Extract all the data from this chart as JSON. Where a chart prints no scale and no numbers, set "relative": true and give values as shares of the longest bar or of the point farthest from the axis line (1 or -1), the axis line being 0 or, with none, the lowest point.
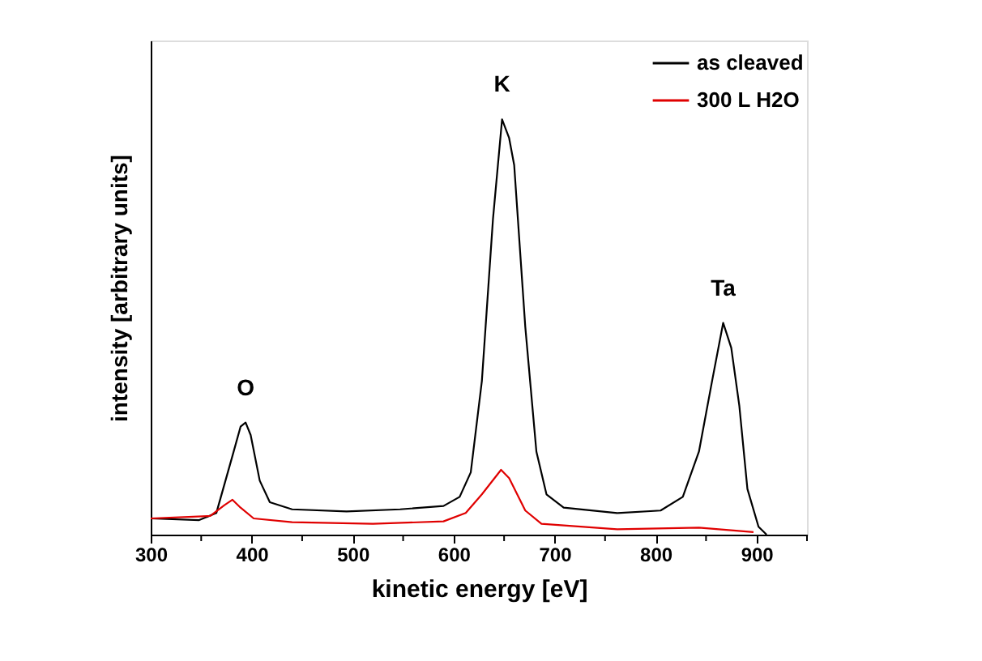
{
  "chart_data": {
    "type": "line",
    "relative": true,
    "xlabel": "kinetic energy [eV]",
    "ylabel": "intensity [arbitrary units]",
    "xlim": [
      300,
      950
    ],
    "xticks": [
      300,
      {
        "value": 350,
        "label": null
      },
      400,
      {
        "value": 450,
        "label": null
      },
      500,
      {
        "value": 550,
        "label": null
      },
      600,
      {
        "value": 650,
        "label": null
      },
      700,
      {
        "value": 750,
        "label": null
      },
      800,
      {
        "value": 850,
        "label": null
      },
      900,
      {
        "value": 950,
        "label": null
      }
    ],
    "legend": "top right",
    "grid": false,
    "line_style": "solid",
    "series": [
      {
        "name": "as cleaved",
        "color": "#000000",
        "x": [
          300,
          348,
          365,
          381,
          389,
          394,
          399,
          408,
          418,
          440,
          494,
          547,
          590,
          606,
          617,
          628,
          639,
          648,
          655,
          660,
          671,
          682,
          692,
          709,
          762,
          805,
          827,
          843,
          856,
          867,
          875,
          883,
          891,
          902,
          910
        ],
        "values": [
          0.039,
          0.035,
          0.052,
          0.19,
          0.26,
          0.27,
          0.24,
          0.13,
          0.078,
          0.061,
          0.056,
          0.061,
          0.069,
          0.091,
          0.15,
          0.37,
          0.76,
          1.0,
          0.955,
          0.89,
          0.5,
          0.2,
          0.097,
          0.065,
          0.052,
          0.058,
          0.091,
          0.2,
          0.37,
          0.51,
          0.45,
          0.31,
          0.11,
          0.019,
          0.0
        ]
      },
      {
        "name": "300 L H2O",
        "color": "#e00000",
        "x": [
          300,
          359,
          373,
          381,
          389,
          402,
          440,
          520,
          590,
          612,
          628,
          647,
          655,
          671,
          687,
          762,
          843,
          897
        ],
        "values": [
          0.039,
          0.045,
          0.071,
          0.084,
          0.065,
          0.039,
          0.03,
          0.026,
          0.032,
          0.052,
          0.097,
          0.156,
          0.136,
          0.058,
          0.026,
          0.013,
          0.017,
          0.006
        ]
      }
    ],
    "annotations": [
      {
        "text": "O",
        "x": 394,
        "y": 0.27
      },
      {
        "text": "K",
        "x": 648,
        "y": 1.0
      },
      {
        "text": "Ta",
        "x": 867,
        "y": 0.51
      }
    ]
  }
}
